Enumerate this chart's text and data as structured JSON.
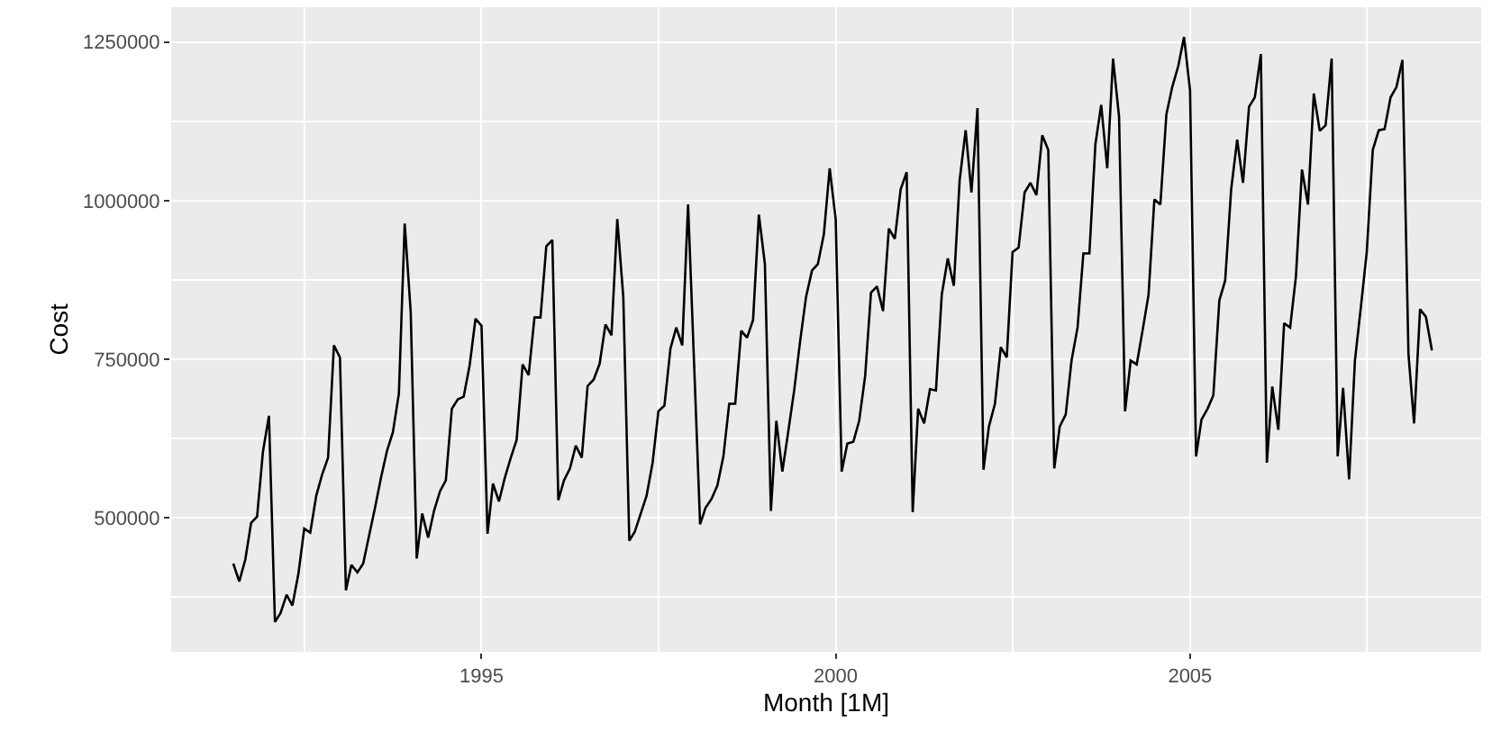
{
  "chart_data": {
    "type": "line",
    "xlabel": "Month [1M]",
    "ylabel": "Cost",
    "x": [
      "1991-07",
      "1991-08",
      "1991-09",
      "1991-10",
      "1991-11",
      "1991-12",
      "1992-01",
      "1992-02",
      "1992-03",
      "1992-04",
      "1992-05",
      "1992-06",
      "1992-07",
      "1992-08",
      "1992-09",
      "1992-10",
      "1992-11",
      "1992-12",
      "1993-01",
      "1993-02",
      "1993-03",
      "1993-04",
      "1993-05",
      "1993-06",
      "1993-07",
      "1993-08",
      "1993-09",
      "1993-10",
      "1993-11",
      "1993-12",
      "1994-01",
      "1994-02",
      "1994-03",
      "1994-04",
      "1994-05",
      "1994-06",
      "1994-07",
      "1994-08",
      "1994-09",
      "1994-10",
      "1994-11",
      "1994-12",
      "1995-01",
      "1995-02",
      "1995-03",
      "1995-04",
      "1995-05",
      "1995-06",
      "1995-07",
      "1995-08",
      "1995-09",
      "1995-10",
      "1995-11",
      "1995-12",
      "1996-01",
      "1996-02",
      "1996-03",
      "1996-04",
      "1996-05",
      "1996-06",
      "1996-07",
      "1996-08",
      "1996-09",
      "1996-10",
      "1996-11",
      "1996-12",
      "1997-01",
      "1997-02",
      "1997-03",
      "1997-04",
      "1997-05",
      "1997-06",
      "1997-07",
      "1997-08",
      "1997-09",
      "1997-10",
      "1997-11",
      "1997-12",
      "1998-01",
      "1998-02",
      "1998-03",
      "1998-04",
      "1998-05",
      "1998-06",
      "1998-07",
      "1998-08",
      "1998-09",
      "1998-10",
      "1998-11",
      "1998-12",
      "1999-01",
      "1999-02",
      "1999-03",
      "1999-04",
      "1999-05",
      "1999-06",
      "1999-07",
      "1999-08",
      "1999-09",
      "1999-10",
      "1999-11",
      "1999-12",
      "2000-01",
      "2000-02",
      "2000-03",
      "2000-04",
      "2000-05",
      "2000-06",
      "2000-07",
      "2000-08",
      "2000-09",
      "2000-10",
      "2000-11",
      "2000-12",
      "2001-01",
      "2001-02",
      "2001-03",
      "2001-04",
      "2001-05",
      "2001-06",
      "2001-07",
      "2001-08",
      "2001-09",
      "2001-10",
      "2001-11",
      "2001-12",
      "2002-01",
      "2002-02",
      "2002-03",
      "2002-04",
      "2002-05",
      "2002-06",
      "2002-07",
      "2002-08",
      "2002-09",
      "2002-10",
      "2002-11",
      "2002-12",
      "2003-01",
      "2003-02",
      "2003-03",
      "2003-04",
      "2003-05",
      "2003-06",
      "2003-07",
      "2003-08",
      "2003-09",
      "2003-10",
      "2003-11",
      "2003-12",
      "2004-01",
      "2004-02",
      "2004-03",
      "2004-04",
      "2004-05",
      "2004-06",
      "2004-07",
      "2004-08",
      "2004-09",
      "2004-10",
      "2004-11",
      "2004-12",
      "2005-01",
      "2005-02",
      "2005-03",
      "2005-04",
      "2005-05",
      "2005-06",
      "2005-07",
      "2005-08",
      "2005-09",
      "2005-10",
      "2005-11",
      "2005-12",
      "2006-01",
      "2006-02",
      "2006-03",
      "2006-04",
      "2006-05",
      "2006-06",
      "2006-07",
      "2006-08",
      "2006-09",
      "2006-10",
      "2006-11",
      "2006-12",
      "2007-01",
      "2007-02",
      "2007-03",
      "2007-04",
      "2007-05",
      "2007-06",
      "2007-07",
      "2007-08",
      "2007-09",
      "2007-10",
      "2007-11",
      "2007-12",
      "2008-01",
      "2008-02",
      "2008-03",
      "2008-04",
      "2008-05",
      "2008-06"
    ],
    "series": [
      {
        "color": "#000000",
        "values": [
          428000,
          400000,
          434000,
          492000,
          502000,
          604000,
          661000,
          336000,
          350000,
          379000,
          362000,
          412000,
          483000,
          477000,
          535000,
          568000,
          595000,
          772000,
          753000,
          386000,
          426000,
          414000,
          428000,
          473000,
          516000,
          564000,
          606000,
          635000,
          696000,
          964000,
          824000,
          436000,
          507000,
          469000,
          511000,
          542000,
          559000,
          672000,
          687000,
          691000,
          741000,
          814000,
          803000,
          475000,
          554000,
          526000,
          563000,
          595000,
          623000,
          742000,
          725000,
          816000,
          816000,
          928000,
          938000,
          528000,
          559000,
          578000,
          614000,
          595000,
          708000,
          718000,
          743000,
          805000,
          788000,
          971000,
          848000,
          464000,
          478000,
          507000,
          535000,
          587000,
          668000,
          677000,
          767000,
          800000,
          772000,
          994000,
          743000,
          490000,
          516000,
          530000,
          551000,
          597000,
          680000,
          680000,
          795000,
          784000,
          812000,
          978000,
          900000,
          511000,
          653000,
          573000,
          635000,
          701000,
          777000,
          848000,
          890000,
          900000,
          947000,
          1051000,
          971000,
          573000,
          617000,
          620000,
          653000,
          724000,
          855000,
          865000,
          826000,
          956000,
          940000,
          1018000,
          1045000,
          509000,
          672000,
          649000,
          703000,
          701000,
          852000,
          909000,
          866000,
          1032000,
          1111000,
          1013000,
          1146000,
          576000,
          644000,
          680000,
          769000,
          753000,
          919000,
          926000,
          1013000,
          1028000,
          1009000,
          1103000,
          1080000,
          578000,
          644000,
          663000,
          748000,
          800000,
          917000,
          917000,
          1089000,
          1151000,
          1051000,
          1224000,
          1132000,
          668000,
          748000,
          742000,
          795000,
          852000,
          1002000,
          994000,
          1136000,
          1179000,
          1212000,
          1258000,
          1174000,
          597000,
          655000,
          672000,
          693000,
          843000,
          874000,
          1018000,
          1096000,
          1028000,
          1148000,
          1163000,
          1231000,
          587000,
          707000,
          639000,
          807000,
          800000,
          881000,
          1049000,
          994000,
          1169000,
          1110000,
          1119000,
          1224000,
          597000,
          705000,
          561000,
          748000,
          833000,
          919000,
          1080000,
          1111000,
          1113000,
          1163000,
          1179000,
          1222000,
          758000,
          649000,
          829000,
          817000,
          764000
        ]
      }
    ],
    "xlim": [
      "1990-08-15",
      "2009-02-10"
    ],
    "xticks": [
      "1995",
      "2000",
      "2005"
    ],
    "ylim": [
      289000,
      1305000
    ],
    "yticks": [
      500000,
      750000,
      1000000,
      1250000
    ],
    "grid": true,
    "marker": "none",
    "line_style": "solid"
  }
}
